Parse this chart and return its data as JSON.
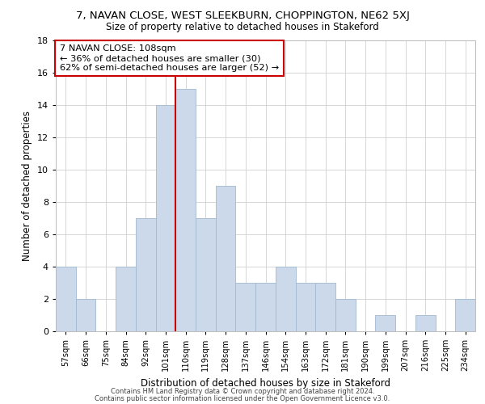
{
  "title": "7, NAVAN CLOSE, WEST SLEEKBURN, CHOPPINGTON, NE62 5XJ",
  "subtitle": "Size of property relative to detached houses in Stakeford",
  "xlabel": "Distribution of detached houses by size in Stakeford",
  "ylabel": "Number of detached properties",
  "bins": [
    "57sqm",
    "66sqm",
    "75sqm",
    "84sqm",
    "92sqm",
    "101sqm",
    "110sqm",
    "119sqm",
    "128sqm",
    "137sqm",
    "146sqm",
    "154sqm",
    "163sqm",
    "172sqm",
    "181sqm",
    "190sqm",
    "199sqm",
    "207sqm",
    "216sqm",
    "225sqm",
    "234sqm"
  ],
  "counts": [
    4,
    2,
    0,
    4,
    7,
    14,
    15,
    7,
    9,
    3,
    3,
    4,
    3,
    3,
    2,
    0,
    1,
    0,
    1,
    0,
    2
  ],
  "bar_color": "#ccd9ea",
  "bar_edge_color": "#a0b8d0",
  "annotation_text": "7 NAVAN CLOSE: 108sqm\n← 36% of detached houses are smaller (30)\n62% of semi-detached houses are larger (52) →",
  "annotation_box_color": "white",
  "annotation_box_edge_color": "#cc0000",
  "vline_color": "#cc0000",
  "vline_x_index": 5.5,
  "ylim": [
    0,
    18
  ],
  "yticks": [
    0,
    2,
    4,
    6,
    8,
    10,
    12,
    14,
    16,
    18
  ],
  "grid_color": "#d0d0d0",
  "background_color": "white",
  "footer_line1": "Contains HM Land Registry data © Crown copyright and database right 2024.",
  "footer_line2": "Contains public sector information licensed under the Open Government Licence v3.0."
}
